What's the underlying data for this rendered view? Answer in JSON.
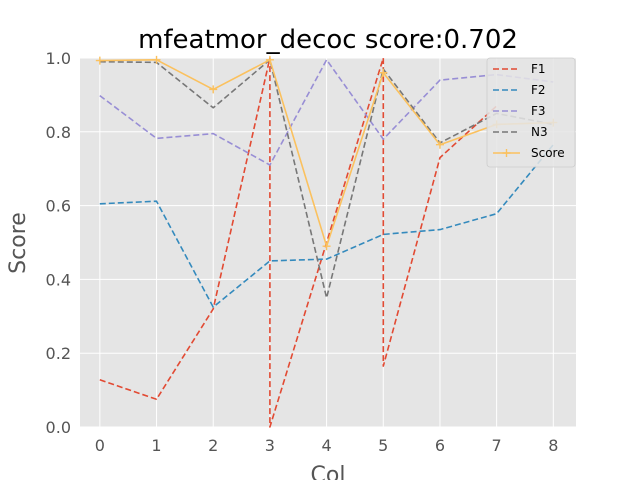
{
  "chart_data": {
    "type": "line",
    "title": "mfeatmor_decoc score:0.702",
    "xlabel": "Col",
    "ylabel": "Score",
    "x": [
      0,
      1,
      2,
      3,
      4,
      5,
      6,
      7,
      8
    ],
    "xlim": [
      -0.35,
      8.4
    ],
    "ylim": [
      0,
      1.0
    ],
    "xticks": [
      "0",
      "1",
      "2",
      "3",
      "4",
      "5",
      "6",
      "7",
      "8"
    ],
    "yticks": [
      "0.0",
      "0.2",
      "0.4",
      "0.6",
      "0.8",
      "1.0"
    ],
    "grid": true,
    "legend_position": "top-right",
    "series": [
      {
        "name": "F1",
        "color": "#E24A33",
        "dash": "dashed",
        "marker": "none",
        "points": [
          [
            0,
            0.128
          ],
          [
            1,
            0.075
          ],
          [
            2,
            0.32
          ],
          [
            3,
            1.0
          ],
          [
            3,
            0.0
          ],
          [
            5,
            1.0
          ],
          [
            5,
            0.165
          ],
          [
            6,
            0.73
          ],
          [
            7,
            0.87
          ]
        ]
      },
      {
        "name": "F2",
        "color": "#348ABD",
        "dash": "dashed",
        "marker": "none",
        "points": [
          [
            0,
            0.605
          ],
          [
            1,
            0.612
          ],
          [
            2,
            0.325
          ],
          [
            3,
            0.45
          ],
          [
            4,
            0.455
          ],
          [
            5,
            0.522
          ],
          [
            6,
            0.535
          ],
          [
            7,
            0.578
          ],
          [
            8,
            0.765
          ]
        ]
      },
      {
        "name": "F3",
        "color": "#988ED5",
        "dash": "dashed",
        "marker": "none",
        "points": [
          [
            0,
            0.898
          ],
          [
            1,
            0.782
          ],
          [
            2,
            0.795
          ],
          [
            3,
            0.71
          ],
          [
            4,
            0.995
          ],
          [
            5,
            0.78
          ],
          [
            6,
            0.94
          ],
          [
            7,
            0.955
          ],
          [
            8,
            0.935
          ]
        ]
      },
      {
        "name": "N3",
        "color": "#777777",
        "dash": "dashed",
        "marker": "none",
        "points": [
          [
            0,
            0.99
          ],
          [
            1,
            0.988
          ],
          [
            2,
            0.865
          ],
          [
            3,
            0.995
          ],
          [
            4,
            0.35
          ],
          [
            5,
            0.97
          ],
          [
            6,
            0.77
          ],
          [
            7,
            0.85
          ],
          [
            8,
            0.82
          ]
        ]
      },
      {
        "name": "Score",
        "color": "#FBC15E",
        "dash": "solid",
        "marker": "plus",
        "points": [
          [
            0,
            0.993
          ],
          [
            1,
            0.995
          ],
          [
            2,
            0.915
          ],
          [
            3,
            0.995
          ],
          [
            4,
            0.49
          ],
          [
            5,
            0.96
          ],
          [
            6,
            0.765
          ],
          [
            7,
            0.82
          ],
          [
            8,
            0.825
          ]
        ]
      }
    ]
  }
}
